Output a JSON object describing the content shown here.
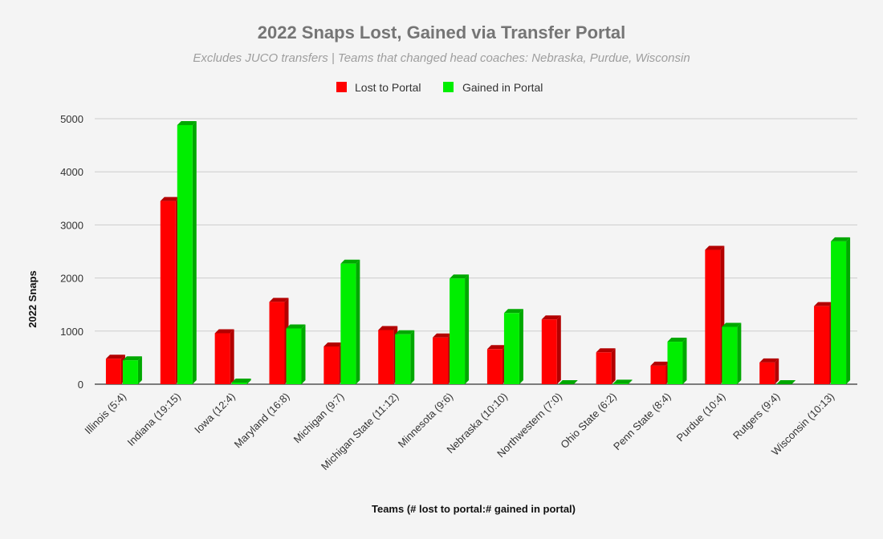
{
  "chart_data": {
    "type": "bar",
    "title": "2022 Snaps Lost, Gained via Transfer Portal",
    "subtitle": "Excludes JUCO transfers | Teams that changed head coaches: Nebraska, Purdue, Wisconsin",
    "xlabel": "Teams (# lost to portal:# gained in portal)",
    "ylabel": "2022 Snaps",
    "ylim": [
      0,
      5000
    ],
    "yticks": [
      0,
      1000,
      2000,
      3000,
      4000,
      5000
    ],
    "grid": true,
    "legend_position": "top",
    "categories": [
      "Illinois (5:4)",
      "Indiana (19:15)",
      "Iowa (12:4)",
      "Maryland (16:8)",
      "Michigan (9:7)",
      "Michigan State (11:12)",
      "Minnesota (9:6)",
      "Nebraska (10:10)",
      "Northwestern (7:0)",
      "Ohio State (6:2)",
      "Penn State (8:4)",
      "Purdue (10:4)",
      "Rutgers (9:4)",
      "Wisconsin (10:13)"
    ],
    "series": [
      {
        "name": "Lost to Portal",
        "color": "#ff0000",
        "side_color": "#b30000",
        "values": [
          480,
          3450,
          960,
          1550,
          710,
          1020,
          880,
          660,
          1220,
          600,
          350,
          2530,
          410,
          1470
        ]
      },
      {
        "name": "Gained in Portal",
        "color": "#00ee00",
        "side_color": "#00a800",
        "values": [
          450,
          4880,
          30,
          1050,
          2270,
          940,
          1990,
          1340,
          0,
          10,
          800,
          1080,
          0,
          2690
        ]
      }
    ]
  }
}
